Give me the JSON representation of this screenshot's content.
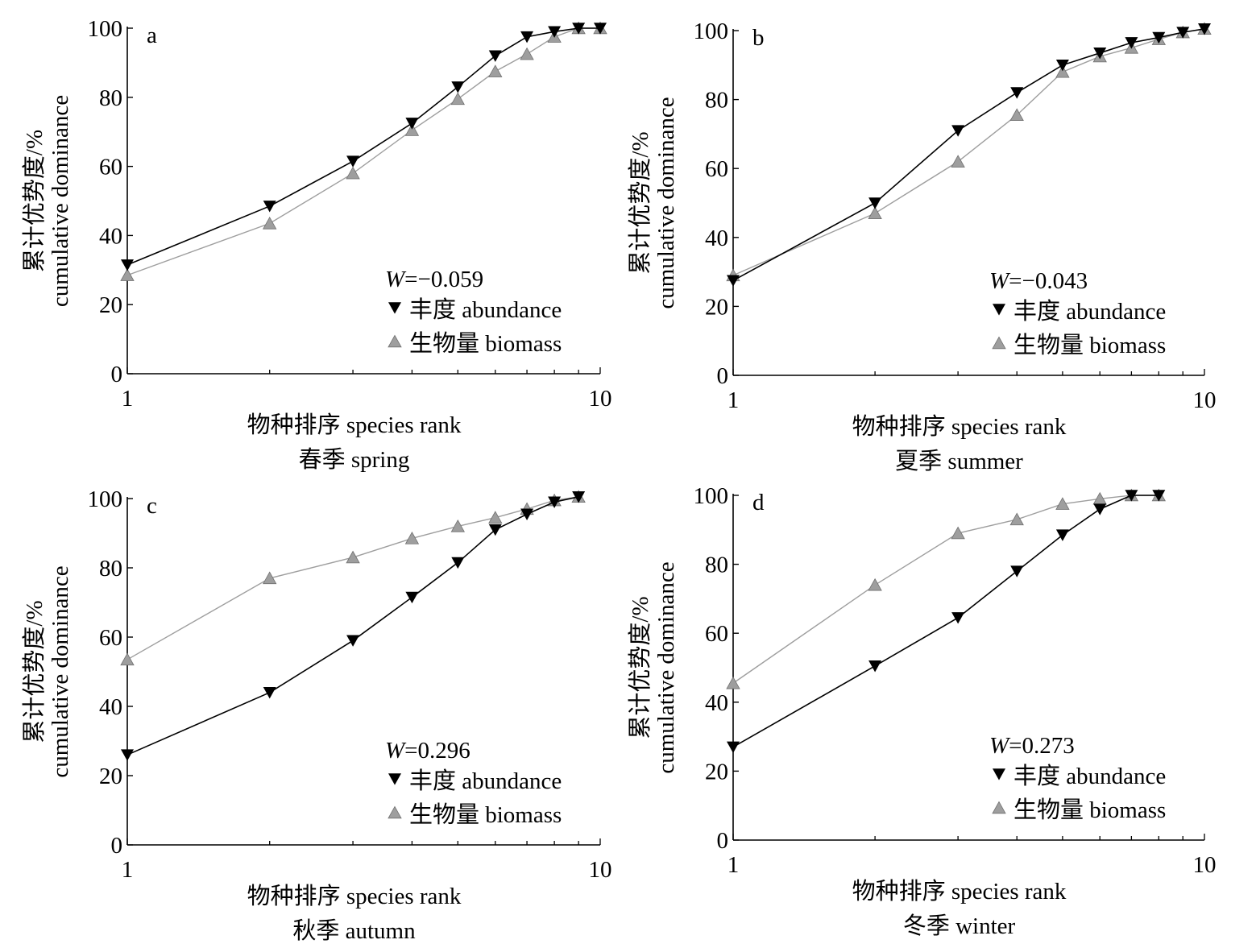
{
  "colors": {
    "abundance": "#000000",
    "biomass": "#9e9e9e",
    "axis": "#000000"
  },
  "chart_data": [
    {
      "type": "line",
      "panel_label": "a",
      "xlabel": "物种排序 species rank",
      "season": "春季 spring",
      "ylabel_cn": "累计优势度/%",
      "ylabel_en": "cumulative dominance",
      "x_scale": "log",
      "xlim": [
        1,
        10
      ],
      "ylim": [
        0,
        100
      ],
      "x_ticks": [
        1,
        10
      ],
      "y_ticks": [
        0,
        20,
        40,
        60,
        80,
        100
      ],
      "w_prefix": "W",
      "w_value": "=−0.059",
      "legend_position": "bottom-right",
      "series": [
        {
          "name": "丰度 abundance",
          "marker": "triangle-down",
          "color": "#000000",
          "x": [
            1,
            2,
            3,
            4,
            5,
            6,
            7,
            8,
            9,
            10
          ],
          "y": [
            31.5,
            48.5,
            61.5,
            72.5,
            83,
            92,
            97.5,
            99,
            100,
            100
          ]
        },
        {
          "name": "生物量 biomass",
          "marker": "triangle-up",
          "color": "#9e9e9e",
          "x": [
            1,
            2,
            3,
            4,
            5,
            6,
            7,
            8,
            9,
            10
          ],
          "y": [
            28.5,
            43.5,
            58,
            70.5,
            79.5,
            87.5,
            92.5,
            97.5,
            100,
            100
          ]
        }
      ]
    },
    {
      "type": "line",
      "panel_label": "b",
      "xlabel": "物种排序 species rank",
      "season": "夏季 summer",
      "ylabel_cn": "累计优势度/%",
      "ylabel_en": "cumulative dominance",
      "x_scale": "log",
      "xlim": [
        1,
        10
      ],
      "ylim": [
        0,
        100
      ],
      "x_ticks": [
        1,
        10
      ],
      "y_ticks": [
        0,
        20,
        40,
        60,
        80,
        100
      ],
      "w_prefix": "W",
      "w_value": "=−0.043",
      "legend_position": "bottom-right",
      "series": [
        {
          "name": "丰度 abundance",
          "marker": "triangle-down",
          "color": "#000000",
          "x": [
            1,
            2,
            3,
            4,
            5,
            6,
            7,
            8,
            9,
            10
          ],
          "y": [
            27.5,
            50,
            71,
            82,
            90,
            93.5,
            96.5,
            98,
            99.5,
            100.5
          ]
        },
        {
          "name": "生物量 biomass",
          "marker": "triangle-up",
          "color": "#9e9e9e",
          "x": [
            1,
            2,
            3,
            4,
            5,
            6,
            7,
            8,
            9,
            10
          ],
          "y": [
            29,
            47,
            62,
            75.5,
            88,
            92.5,
            95,
            97.5,
            99.5,
            100.5
          ]
        }
      ]
    },
    {
      "type": "line",
      "panel_label": "c",
      "xlabel": "物种排序 species rank",
      "season": "秋季 autumn",
      "ylabel_cn": "累计优势度/%",
      "ylabel_en": "cumulative dominance",
      "x_scale": "log",
      "xlim": [
        1,
        10
      ],
      "ylim": [
        0,
        100
      ],
      "x_ticks": [
        1,
        10
      ],
      "y_ticks": [
        0,
        20,
        40,
        60,
        80,
        100
      ],
      "w_prefix": "W",
      "w_value": "=0.296",
      "legend_position": "bottom-right",
      "series": [
        {
          "name": "丰度 abundance",
          "marker": "triangle-down",
          "color": "#000000",
          "x": [
            1,
            2,
            3,
            4,
            5,
            6,
            7,
            8,
            9
          ],
          "y": [
            26,
            44,
            59,
            71.5,
            81.5,
            91,
            95.5,
            99,
            100.5
          ]
        },
        {
          "name": "生物量 biomass",
          "marker": "triangle-up",
          "color": "#9e9e9e",
          "x": [
            1,
            2,
            3,
            4,
            5,
            6,
            7,
            8,
            9
          ],
          "y": [
            53.5,
            77,
            83,
            88.5,
            92,
            94.5,
            97,
            99.5,
            100.5
          ]
        }
      ]
    },
    {
      "type": "line",
      "panel_label": "d",
      "xlabel": "物种排序 species rank",
      "season": "冬季 winter",
      "ylabel_cn": "累计优势度/%",
      "ylabel_en": "cumulative dominance",
      "x_scale": "log",
      "xlim": [
        1,
        10
      ],
      "ylim": [
        0,
        100
      ],
      "x_ticks": [
        1,
        10
      ],
      "y_ticks": [
        0,
        20,
        40,
        60,
        80,
        100
      ],
      "w_prefix": "W",
      "w_value": "=0.273",
      "legend_position": "bottom-right",
      "series": [
        {
          "name": "丰度 abundance",
          "marker": "triangle-down",
          "color": "#000000",
          "x": [
            1,
            2,
            3,
            4,
            5,
            6,
            7,
            8
          ],
          "y": [
            27,
            50.5,
            64.5,
            78,
            88.5,
            96,
            100,
            100
          ]
        },
        {
          "name": "生物量 biomass",
          "marker": "triangle-up",
          "color": "#9e9e9e",
          "x": [
            1,
            2,
            3,
            4,
            5,
            6,
            7,
            8
          ],
          "y": [
            45.5,
            74,
            89,
            93,
            97.5,
            99,
            100,
            100
          ]
        }
      ]
    }
  ]
}
